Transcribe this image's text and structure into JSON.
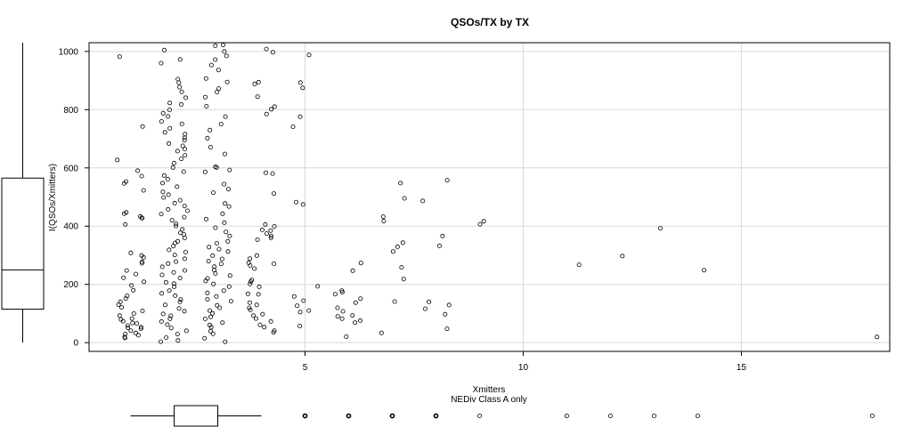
{
  "chart_data": {
    "type": "scatter",
    "title": "QSOs/TX by TX",
    "xlabel": "Xmitters",
    "subtitle": "NEDiv Class A only",
    "ylabel": "I(QSOs/Xmitters)",
    "xlim": [
      0.05,
      18.4
    ],
    "ylim": [
      -30,
      1030
    ],
    "xticks": [
      5,
      10,
      15
    ],
    "yticks": [
      0,
      200,
      400,
      600,
      800,
      1000
    ],
    "grid": true,
    "point_color": "#000000",
    "grid_color": "#d9d9d9",
    "groups": [
      {
        "x": 1,
        "y": [
          980,
          745,
          630,
          590,
          570,
          555,
          545,
          525,
          450,
          445,
          435,
          430,
          425,
          405,
          310,
          300,
          290,
          280,
          270,
          250,
          235,
          225,
          210,
          195,
          180,
          160,
          150,
          140,
          130,
          120,
          110,
          100,
          95,
          85,
          80,
          75,
          70,
          65,
          60,
          55,
          50,
          45,
          40,
          35,
          30,
          25,
          20,
          15
        ]
      },
      {
        "x": 2,
        "y": [
          1005,
          975,
          960,
          905,
          895,
          880,
          860,
          840,
          825,
          815,
          800,
          790,
          775,
          760,
          750,
          735,
          725,
          715,
          705,
          695,
          685,
          675,
          665,
          655,
          645,
          630,
          615,
          600,
          590,
          575,
          560,
          545,
          535,
          520,
          510,
          500,
          490,
          480,
          470,
          460,
          450,
          440,
          430,
          420,
          410,
          400,
          390,
          380,
          370,
          360,
          350,
          340,
          330,
          320,
          310,
          300,
          290,
          280,
          270,
          260,
          250,
          240,
          230,
          220,
          210,
          200,
          190,
          180,
          170,
          160,
          150,
          140,
          130,
          120,
          110,
          100,
          90,
          80,
          70,
          60,
          50,
          40,
          30,
          20,
          10,
          5
        ]
      },
      {
        "x": 3,
        "y": [
          1025,
          1020,
          1000,
          985,
          970,
          955,
          935,
          910,
          895,
          875,
          860,
          845,
          810,
          775,
          750,
          730,
          705,
          670,
          645,
          605,
          600,
          590,
          585,
          545,
          530,
          515,
          480,
          470,
          440,
          425,
          410,
          395,
          380,
          365,
          350,
          340,
          330,
          320,
          310,
          300,
          290,
          280,
          270,
          260,
          250,
          240,
          230,
          220,
          210,
          200,
          190,
          180,
          170,
          160,
          150,
          140,
          130,
          120,
          110,
          100,
          90,
          80,
          70,
          60,
          50,
          40,
          30,
          15,
          5
        ]
      },
      {
        "x": 4,
        "y": [
          1010,
          1000,
          895,
          890,
          845,
          810,
          800,
          785,
          585,
          580,
          510,
          405,
          400,
          390,
          385,
          375,
          365,
          360,
          355,
          300,
          290,
          275,
          270,
          265,
          255,
          215,
          210,
          200,
          190,
          170,
          165,
          140,
          130,
          120,
          110,
          100,
          90,
          80,
          70,
          60,
          55,
          40,
          35
        ]
      },
      {
        "x": 5,
        "y": [
          990,
          890,
          875,
          775,
          740,
          480,
          475,
          195,
          160,
          145,
          125,
          110,
          105,
          55
        ]
      },
      {
        "x": 6,
        "y": [
          275,
          245,
          180,
          175,
          165,
          150,
          135,
          120,
          105,
          95,
          90,
          80,
          75,
          70,
          20
        ]
      },
      {
        "x": 7,
        "y": [
          545,
          495,
          430,
          415,
          345,
          330,
          315,
          260,
          220,
          140,
          35
        ]
      },
      {
        "x": 8,
        "y": [
          555,
          485,
          365,
          330,
          140,
          130,
          115,
          95,
          50
        ]
      },
      {
        "x": 9,
        "y": [
          415,
          405
        ]
      },
      {
        "x": 11,
        "y": [
          265
        ]
      },
      {
        "x": 12,
        "y": [
          295
        ]
      },
      {
        "x": 13,
        "y": [
          395
        ]
      },
      {
        "x": 14,
        "y": [
          250
        ]
      },
      {
        "x": 18,
        "y": [
          20
        ]
      }
    ],
    "y_boxplot": {
      "whisker_low": 0,
      "q1": 115,
      "median": 250,
      "q3": 565,
      "whisker_high": 1030
    },
    "x_boxplot": {
      "whisker_low": 1,
      "q1": 2,
      "median": 3,
      "q3": 3,
      "whisker_high": 4,
      "outliers": [
        5,
        6,
        7,
        8,
        9,
        11,
        12,
        13,
        14,
        18
      ]
    }
  }
}
